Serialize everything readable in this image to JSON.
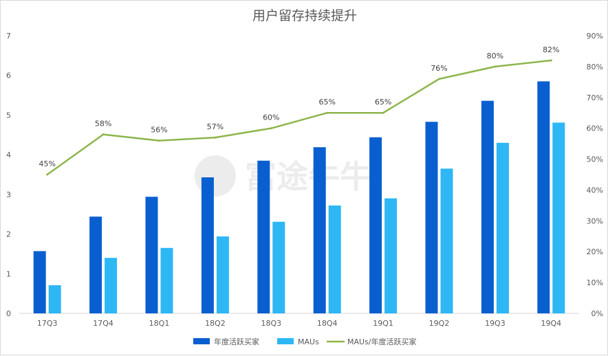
{
  "watermark": "富途牛牛",
  "chart_data": {
    "type": "bar",
    "title": "用户留存持续提升",
    "categories": [
      "17Q3",
      "17Q4",
      "18Q1",
      "18Q2",
      "18Q3",
      "18Q4",
      "19Q1",
      "19Q2",
      "19Q3",
      "19Q4"
    ],
    "series": [
      {
        "name": "年度活跃买家",
        "type": "bar",
        "axis": "left",
        "color": "#0a5fd0",
        "values": [
          1.57,
          2.44,
          2.94,
          3.43,
          3.85,
          4.19,
          4.44,
          4.83,
          5.36,
          5.85
        ]
      },
      {
        "name": "MAUs",
        "type": "bar",
        "axis": "left",
        "color": "#2db7f5",
        "values": [
          0.71,
          1.4,
          1.65,
          1.94,
          2.31,
          2.72,
          2.9,
          3.65,
          4.3,
          4.81
        ]
      },
      {
        "name": "MAUs/年度活跃买家",
        "type": "line",
        "axis": "right",
        "color": "#8db54b",
        "values": [
          45,
          58,
          56,
          57,
          60,
          65,
          65,
          76,
          80,
          82
        ],
        "labels": [
          "45%",
          "58%",
          "56%",
          "57%",
          "60%",
          "65%",
          "65%",
          "76%",
          "80%",
          "82%"
        ]
      }
    ],
    "y_left": {
      "min": 0,
      "max": 7,
      "ticks": [
        "0",
        "1",
        "2",
        "3",
        "4",
        "5",
        "6",
        "7"
      ]
    },
    "y_right": {
      "min": 0,
      "max": 90,
      "ticks": [
        "0%",
        "10%",
        "20%",
        "30%",
        "40%",
        "50%",
        "60%",
        "70%",
        "80%",
        "90%"
      ]
    },
    "grid": false,
    "legend_position": "bottom"
  }
}
